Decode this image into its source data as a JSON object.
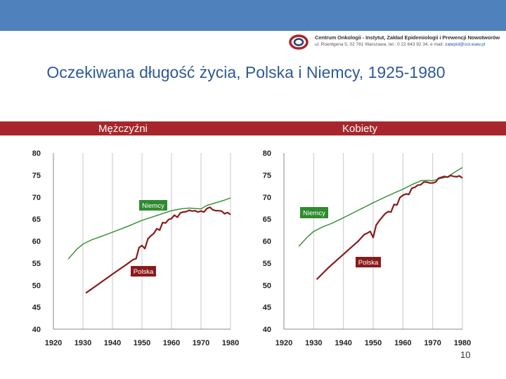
{
  "header": {
    "institution_line1": "Centrum Onkologii - Instytut, Zakład Epidemiologii i Prewencji Nowotworów",
    "institution_line2": "ul. Roentgena 5, 02 781 Warszawa, tel.: 0 22 643 92 34, e mail:",
    "institution_email": "zatepid@coi.waw.pl",
    "logo_icon": "institute-logo-icon"
  },
  "title": "Oczekiwana długość życia, Polska i Niemcy, 1925-1980",
  "page_number": "10",
  "colors": {
    "top_bar": "#4f81bd",
    "category_bar": "#a8262b",
    "title": "#2e5a96",
    "germany": "#2f8a2f",
    "poland": "#8b1a1a"
  },
  "chart_data": [
    {
      "type": "line",
      "panel_label": "Mężczyźni",
      "xlim": [
        1920,
        1980
      ],
      "ylim": [
        40,
        80
      ],
      "xticks": [
        "1920",
        "1930",
        "1940",
        "1950",
        "1960",
        "1970",
        "1980"
      ],
      "yticks": [
        "80",
        "75",
        "70",
        "65",
        "60",
        "55",
        "50",
        "45",
        "40"
      ],
      "grid": "vertical",
      "series": [
        {
          "name": "Niemcy",
          "color": "#2f8a2f",
          "x": [
            1925,
            1928,
            1930,
            1933,
            1936,
            1940,
            1945,
            1950,
            1955,
            1960,
            1963,
            1966,
            1968,
            1970,
            1972,
            1975,
            1978,
            1980
          ],
          "y": [
            55.9,
            58.2,
            59.3,
            60.3,
            61.0,
            62.0,
            63.3,
            64.7,
            65.8,
            66.9,
            67.3,
            67.5,
            67.4,
            67.3,
            68.1,
            68.7,
            69.3,
            69.8
          ]
        },
        {
          "name": "Polska",
          "color": "#8b1a1a",
          "x": [
            1931,
            1935,
            1940,
            1945,
            1947,
            1948,
            1949,
            1950,
            1951,
            1952,
            1953,
            1954,
            1955,
            1956,
            1957,
            1958,
            1959,
            1960,
            1961,
            1962,
            1963,
            1964,
            1965,
            1966,
            1967,
            1968,
            1969,
            1970,
            1971,
            1972,
            1973,
            1974,
            1975,
            1976,
            1977,
            1978,
            1979,
            1980
          ],
          "y": [
            48.2,
            50.1,
            52.5,
            54.8,
            55.8,
            56.0,
            58.5,
            59.0,
            58.3,
            60.5,
            61.2,
            61.7,
            62.8,
            62.5,
            64.2,
            64.1,
            64.9,
            65.1,
            65.9,
            65.4,
            66.4,
            66.6,
            66.7,
            67.0,
            66.8,
            66.9,
            66.6,
            66.8,
            66.6,
            67.4,
            67.7,
            67.1,
            66.9,
            66.9,
            66.8,
            66.2,
            66.5,
            66.0
          ]
        }
      ],
      "annotations": [
        {
          "text": "Niemcy",
          "series": "Niemcy"
        },
        {
          "text": "Polska",
          "series": "Polska"
        }
      ]
    },
    {
      "type": "line",
      "panel_label": "Kobiety",
      "xlim": [
        1920,
        1980
      ],
      "ylim": [
        40,
        80
      ],
      "xticks": [
        "1920",
        "1930",
        "1940",
        "1950",
        "1960",
        "1970",
        "1980"
      ],
      "yticks": [
        "80",
        "75",
        "70",
        "65",
        "60",
        "55",
        "50",
        "45",
        "40"
      ],
      "grid": "vertical",
      "series": [
        {
          "name": "Niemcy",
          "color": "#2f8a2f",
          "x": [
            1925,
            1928,
            1930,
            1933,
            1936,
            1940,
            1945,
            1950,
            1955,
            1960,
            1963,
            1966,
            1968,
            1970,
            1972,
            1975,
            1978,
            1980
          ],
          "y": [
            58.8,
            61.0,
            62.2,
            63.2,
            64.0,
            65.3,
            67.0,
            68.7,
            70.3,
            71.8,
            72.8,
            73.7,
            73.8,
            73.7,
            74.1,
            74.6,
            75.9,
            76.7
          ]
        },
        {
          "name": "Polska",
          "color": "#8b1a1a",
          "x": [
            1931,
            1935,
            1940,
            1945,
            1947,
            1948,
            1949,
            1950,
            1951,
            1952,
            1953,
            1954,
            1955,
            1956,
            1957,
            1958,
            1959,
            1960,
            1961,
            1962,
            1963,
            1964,
            1965,
            1966,
            1967,
            1968,
            1969,
            1970,
            1971,
            1972,
            1973,
            1974,
            1975,
            1976,
            1977,
            1978,
            1979,
            1980
          ],
          "y": [
            51.3,
            54.0,
            57.0,
            60.0,
            61.5,
            61.8,
            62.2,
            60.8,
            63.6,
            64.6,
            65.4,
            66.2,
            66.7,
            66.6,
            68.3,
            68.2,
            69.9,
            70.4,
            70.7,
            70.6,
            72.0,
            72.2,
            72.7,
            72.8,
            73.4,
            73.4,
            73.2,
            73.2,
            73.4,
            74.3,
            74.5,
            74.7,
            74.5,
            74.9,
            74.7,
            74.6,
            74.8,
            74.3
          ]
        }
      ],
      "annotations": [
        {
          "text": "Niemcy",
          "series": "Niemcy"
        },
        {
          "text": "Polska",
          "series": "Polska"
        }
      ]
    }
  ]
}
